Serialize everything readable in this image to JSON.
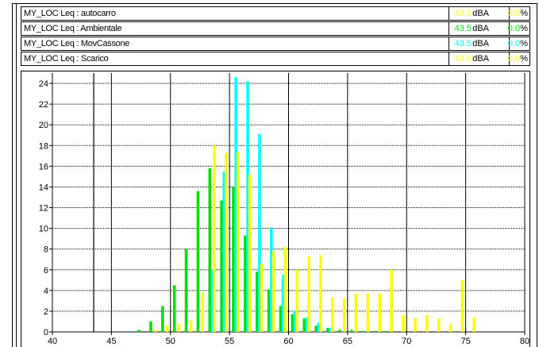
{
  "legend": [
    {
      "label": "MY_LOC Leq : autocarro",
      "value": "43.5",
      "unit": "dBA",
      "pct": "0.0",
      "pct_unit": "%",
      "color": "#ffff00"
    },
    {
      "label": "MY_LOC Leq : Ambientale",
      "value": "43.5",
      "unit": "dBA",
      "pct": "0.0",
      "pct_unit": "%",
      "color": "#00e000"
    },
    {
      "label": "MY_LOC Leq : MovCassone",
      "value": "43.5",
      "unit": "dBA",
      "pct": "0.0",
      "pct_unit": "%",
      "color": "#00ffff"
    },
    {
      "label": "MY_LOC Leq : Scarico",
      "value": "43.5",
      "unit": "dBA",
      "pct": "0.0",
      "pct_unit": "%",
      "color": "#ffff00"
    }
  ],
  "chart_data": {
    "type": "bar",
    "xlim": [
      40,
      80
    ],
    "ylim": [
      0,
      25
    ],
    "x_ticks": [
      "40",
      "45",
      "50",
      "55",
      "60",
      "65",
      "70",
      "75",
      "80"
    ],
    "y_ticks": [
      "0",
      "2",
      "4",
      "6",
      "8",
      "10",
      "12",
      "14",
      "16",
      "18",
      "20",
      "22",
      "24"
    ],
    "grid": true,
    "marker_x": 43.5,
    "series": [
      {
        "color": "#00e000",
        "x": [
          47.5,
          48.5,
          49.5,
          50.5,
          51.5,
          52.5,
          53.5,
          54.5,
          55.5,
          56.5,
          57.5,
          58.5,
          59.5,
          60.5,
          61.5,
          62.5,
          63.5,
          64.5,
          65.5,
          66.5,
          67.5,
          68.5
        ],
        "values": [
          0.2,
          1.0,
          2.5,
          4.5,
          8.0,
          13.6,
          15.8,
          12.7,
          14.0,
          9.3,
          5.8,
          4.1,
          2.5,
          1.7,
          1.3,
          0.6,
          0.4,
          0.2,
          0.2,
          0.1,
          0.1,
          0.1
        ]
      },
      {
        "color": "#00ffff",
        "x": [
          53.5,
          54.5,
          55.5,
          56.5,
          57.5,
          58.5,
          59.5,
          60.5,
          61.5,
          62.5,
          63.5
        ],
        "values": [
          6.0,
          15.5,
          24.6,
          24.2,
          19.1,
          10.1,
          5.5,
          2.1,
          1.4,
          0.9,
          0.4
        ]
      },
      {
        "color": "#ffff00",
        "x": [
          48.5,
          49.5,
          50.5,
          51.5,
          52.5,
          53.5,
          54.5,
          55.5,
          56.5,
          57.5,
          58.5,
          59.5,
          60.5,
          61.5,
          62.5,
          63.5,
          64.5,
          65.5,
          66.5,
          67.5,
          68.5,
          69.5,
          70.5,
          71.5,
          72.5,
          73.5,
          74.5,
          75.5
        ],
        "values": [
          0.2,
          0.6,
          0.8,
          1.1,
          3.8,
          18.0,
          17.3,
          17.4,
          15.2,
          6.6,
          7.8,
          8.2,
          6.0,
          7.3,
          7.4,
          3.3,
          3.2,
          3.7,
          3.7,
          3.7,
          6.0,
          1.6,
          1.3,
          1.6,
          1.3,
          0.8,
          5.0,
          1.4
        ]
      }
    ]
  }
}
